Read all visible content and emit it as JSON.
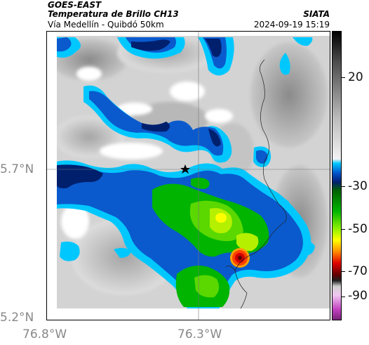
{
  "header": {
    "satellite": "GOES-EAST",
    "product": "Temperatura de Brillo CH13",
    "location": "Vía Medellín - Quibdó 50km",
    "brand": "SIATA",
    "timestamp": "2024-09-19 15:19"
  },
  "axes": {
    "y_ticks": [
      "5.7°N",
      "5.2°N"
    ],
    "x_ticks": [
      "76.8°W",
      "76.3°W"
    ]
  },
  "colorbar": {
    "ticks": [
      "20",
      "-30",
      "-50",
      "-70",
      "-90"
    ],
    "colors": {
      "white": "#ffffff",
      "gray_light": "#d9d9d9",
      "gray_dark": "#8c8c8c",
      "cyan": "#00c8ff",
      "blue": "#0050c8",
      "navy": "#00206e",
      "green": "#00b400",
      "lime": "#8cf000",
      "yellow": "#ffff00",
      "red": "#e00000",
      "dark_red": "#600000",
      "magenta": "#c040c0",
      "black": "#000000"
    }
  },
  "map": {
    "marker": "star-icon"
  }
}
